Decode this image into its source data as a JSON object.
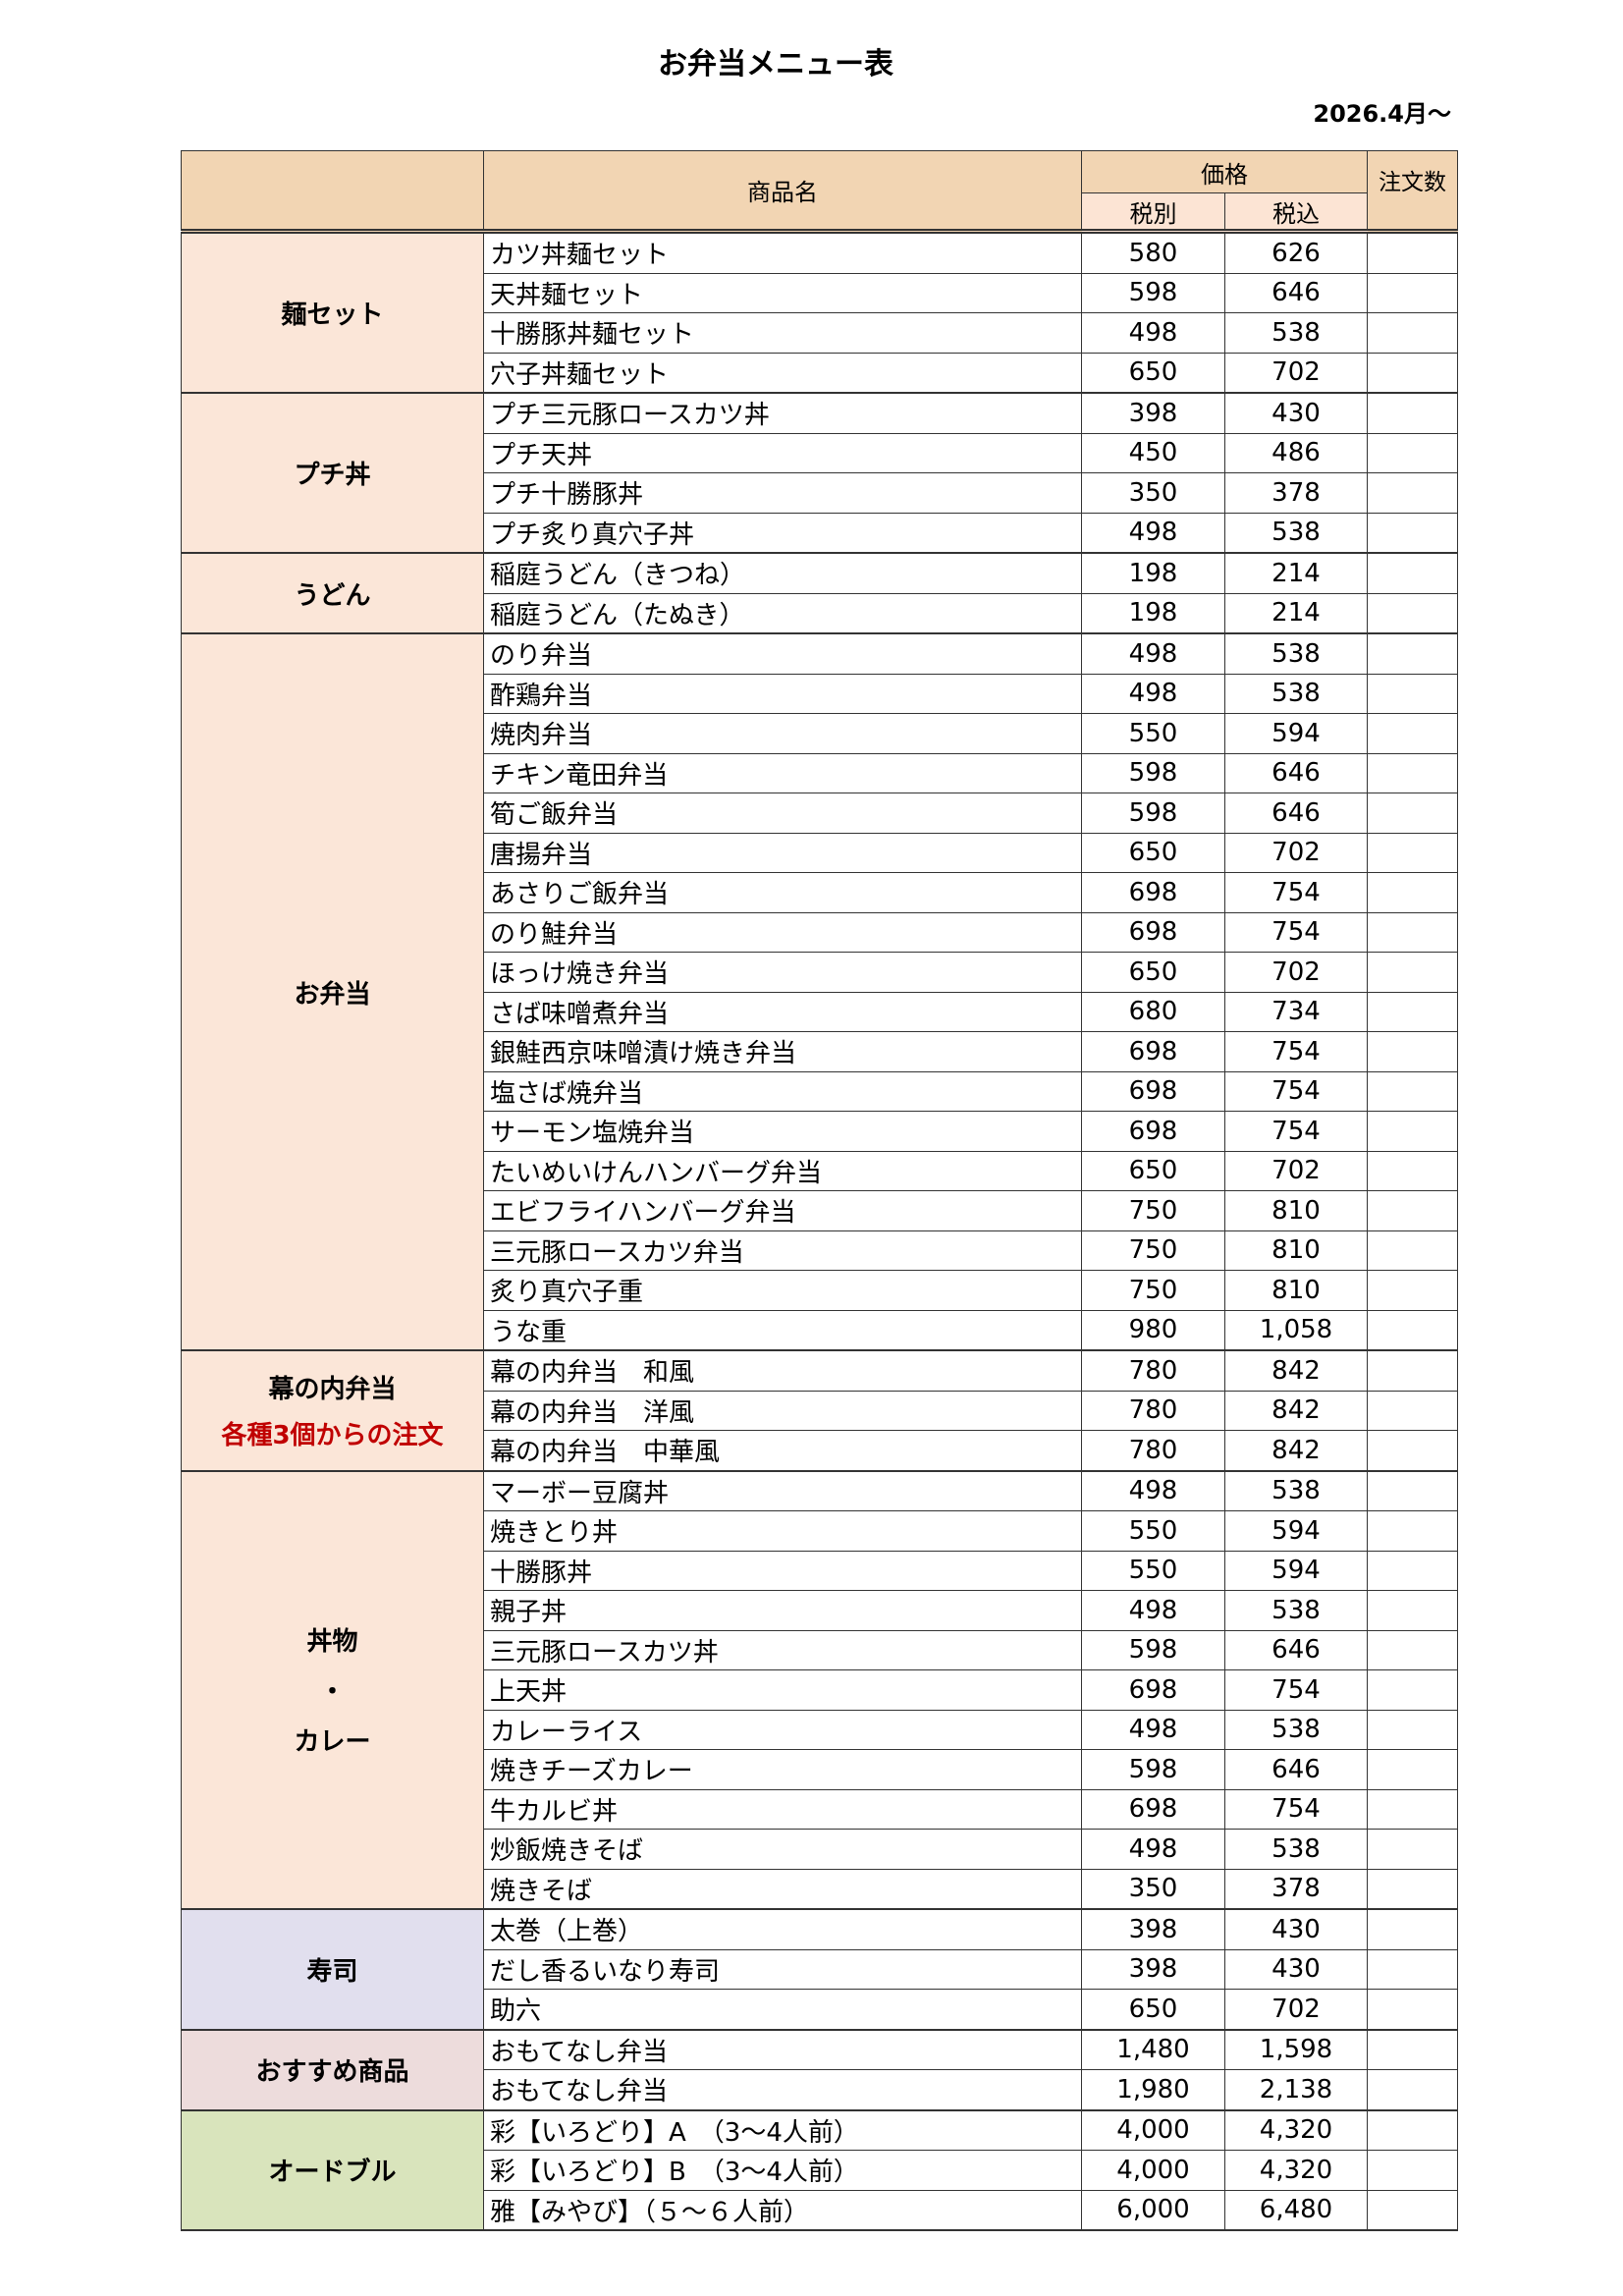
{
  "title": "お弁当メニュー表",
  "effective_date": "2026.4月～",
  "header": {
    "category": "",
    "product": "商品名",
    "price": "価格",
    "excl_tax": "税別",
    "incl_tax": "税込",
    "order_qty": "注文数"
  },
  "colors": {
    "header": "#f2d5b3",
    "subheader": "#fce4d4",
    "category_default": "#fbe6d8",
    "sushi": "#e1dfee",
    "recommended": "#eddcdc",
    "hors_doeuvre": "#d9e4bc",
    "note_red": "#c00000"
  },
  "categories": [
    {
      "name": "麺セット",
      "items": [
        {
          "name": "カツ丼麺セット",
          "excl": "580",
          "incl": "626"
        },
        {
          "name": "天丼麺セット",
          "excl": "598",
          "incl": "646"
        },
        {
          "name": "十勝豚丼麺セット",
          "excl": "498",
          "incl": "538"
        },
        {
          "name": "穴子丼麺セット",
          "excl": "650",
          "incl": "702"
        }
      ]
    },
    {
      "name": "プチ丼",
      "items": [
        {
          "name": "プチ三元豚ロースカツ丼",
          "excl": "398",
          "incl": "430"
        },
        {
          "name": "プチ天丼",
          "excl": "450",
          "incl": "486"
        },
        {
          "name": "プチ十勝豚丼",
          "excl": "350",
          "incl": "378"
        },
        {
          "name": "プチ炙り真穴子丼",
          "excl": "498",
          "incl": "538"
        }
      ]
    },
    {
      "name": "うどん",
      "items": [
        {
          "name": "稲庭うどん（きつね）",
          "excl": "198",
          "incl": "214"
        },
        {
          "name": "稲庭うどん（たぬき）",
          "excl": "198",
          "incl": "214"
        }
      ]
    },
    {
      "name": "お弁当",
      "items": [
        {
          "name": "のり弁当",
          "excl": "498",
          "incl": "538"
        },
        {
          "name": "酢鶏弁当",
          "excl": "498",
          "incl": "538"
        },
        {
          "name": "焼肉弁当",
          "excl": "550",
          "incl": "594"
        },
        {
          "name": "チキン竜田弁当",
          "excl": "598",
          "incl": "646"
        },
        {
          "name": "筍ご飯弁当",
          "excl": "598",
          "incl": "646"
        },
        {
          "name": "唐揚弁当",
          "excl": "650",
          "incl": "702"
        },
        {
          "name": "あさりご飯弁当",
          "excl": "698",
          "incl": "754"
        },
        {
          "name": "のり鮭弁当",
          "excl": "698",
          "incl": "754"
        },
        {
          "name": "ほっけ焼き弁当",
          "excl": "650",
          "incl": "702"
        },
        {
          "name": "さば味噌煮弁当",
          "excl": "680",
          "incl": "734"
        },
        {
          "name": "銀鮭西京味噌漬け焼き弁当",
          "excl": "698",
          "incl": "754"
        },
        {
          "name": "塩さば焼弁当",
          "excl": "698",
          "incl": "754"
        },
        {
          "name": "サーモン塩焼弁当",
          "excl": "698",
          "incl": "754"
        },
        {
          "name": "たいめいけんハンバーグ弁当",
          "excl": "650",
          "incl": "702"
        },
        {
          "name": "エビフライハンバーグ弁当",
          "excl": "750",
          "incl": "810"
        },
        {
          "name": "三元豚ロースカツ弁当",
          "excl": "750",
          "incl": "810"
        },
        {
          "name": "炙り真穴子重",
          "excl": "750",
          "incl": "810"
        },
        {
          "name": "うな重",
          "excl": "980",
          "incl": "1,058"
        }
      ]
    },
    {
      "name": "幕の内弁当",
      "note": "各種3個からの注文",
      "items": [
        {
          "name": "幕の内弁当　和風",
          "excl": "780",
          "incl": "842"
        },
        {
          "name": "幕の内弁当　洋風",
          "excl": "780",
          "incl": "842"
        },
        {
          "name": "幕の内弁当　中華風",
          "excl": "780",
          "incl": "842"
        }
      ]
    },
    {
      "name": "丼物",
      "separator": "・",
      "name2": "カレー",
      "items": [
        {
          "name": "マーボー豆腐丼",
          "excl": "498",
          "incl": "538"
        },
        {
          "name": "焼きとり丼",
          "excl": "550",
          "incl": "594"
        },
        {
          "name": "十勝豚丼",
          "excl": "550",
          "incl": "594"
        },
        {
          "name": "親子丼",
          "excl": "498",
          "incl": "538"
        },
        {
          "name": "三元豚ロースカツ丼",
          "excl": "598",
          "incl": "646"
        },
        {
          "name": "上天丼",
          "excl": "698",
          "incl": "754"
        },
        {
          "name": "カレーライス",
          "excl": "498",
          "incl": "538"
        },
        {
          "name": "焼きチーズカレー",
          "excl": "598",
          "incl": "646"
        },
        {
          "name": "牛カルビ丼",
          "excl": "698",
          "incl": "754"
        },
        {
          "name": "炒飯焼きそば",
          "excl": "498",
          "incl": "538"
        },
        {
          "name": "焼きそば",
          "excl": "350",
          "incl": "378"
        }
      ]
    },
    {
      "name": "寿司",
      "color": "#e1dfee",
      "items": [
        {
          "name": "太巻（上巻）",
          "excl": "398",
          "incl": "430"
        },
        {
          "name": "だし香るいなり寿司",
          "excl": "398",
          "incl": "430"
        },
        {
          "name": "助六",
          "excl": "650",
          "incl": "702"
        }
      ]
    },
    {
      "name": "おすすめ商品",
      "color": "#eddcdc",
      "items": [
        {
          "name": "おもてなし弁当",
          "excl": "1,480",
          "incl": "1,598"
        },
        {
          "name": "おもてなし弁当",
          "excl": "1,980",
          "incl": "2,138"
        }
      ]
    },
    {
      "name": "オードブル",
      "color": "#d9e4bc",
      "items": [
        {
          "name": "彩【いろどり】A　（3～4人前）",
          "excl": "4,000",
          "incl": "4,320"
        },
        {
          "name": "彩【いろどり】B　（3～4人前）",
          "excl": "4,000",
          "incl": "4,320"
        },
        {
          "name": "雅【みやび】（５～６人前）",
          "excl": "6,000",
          "incl": "6,480"
        }
      ]
    }
  ]
}
